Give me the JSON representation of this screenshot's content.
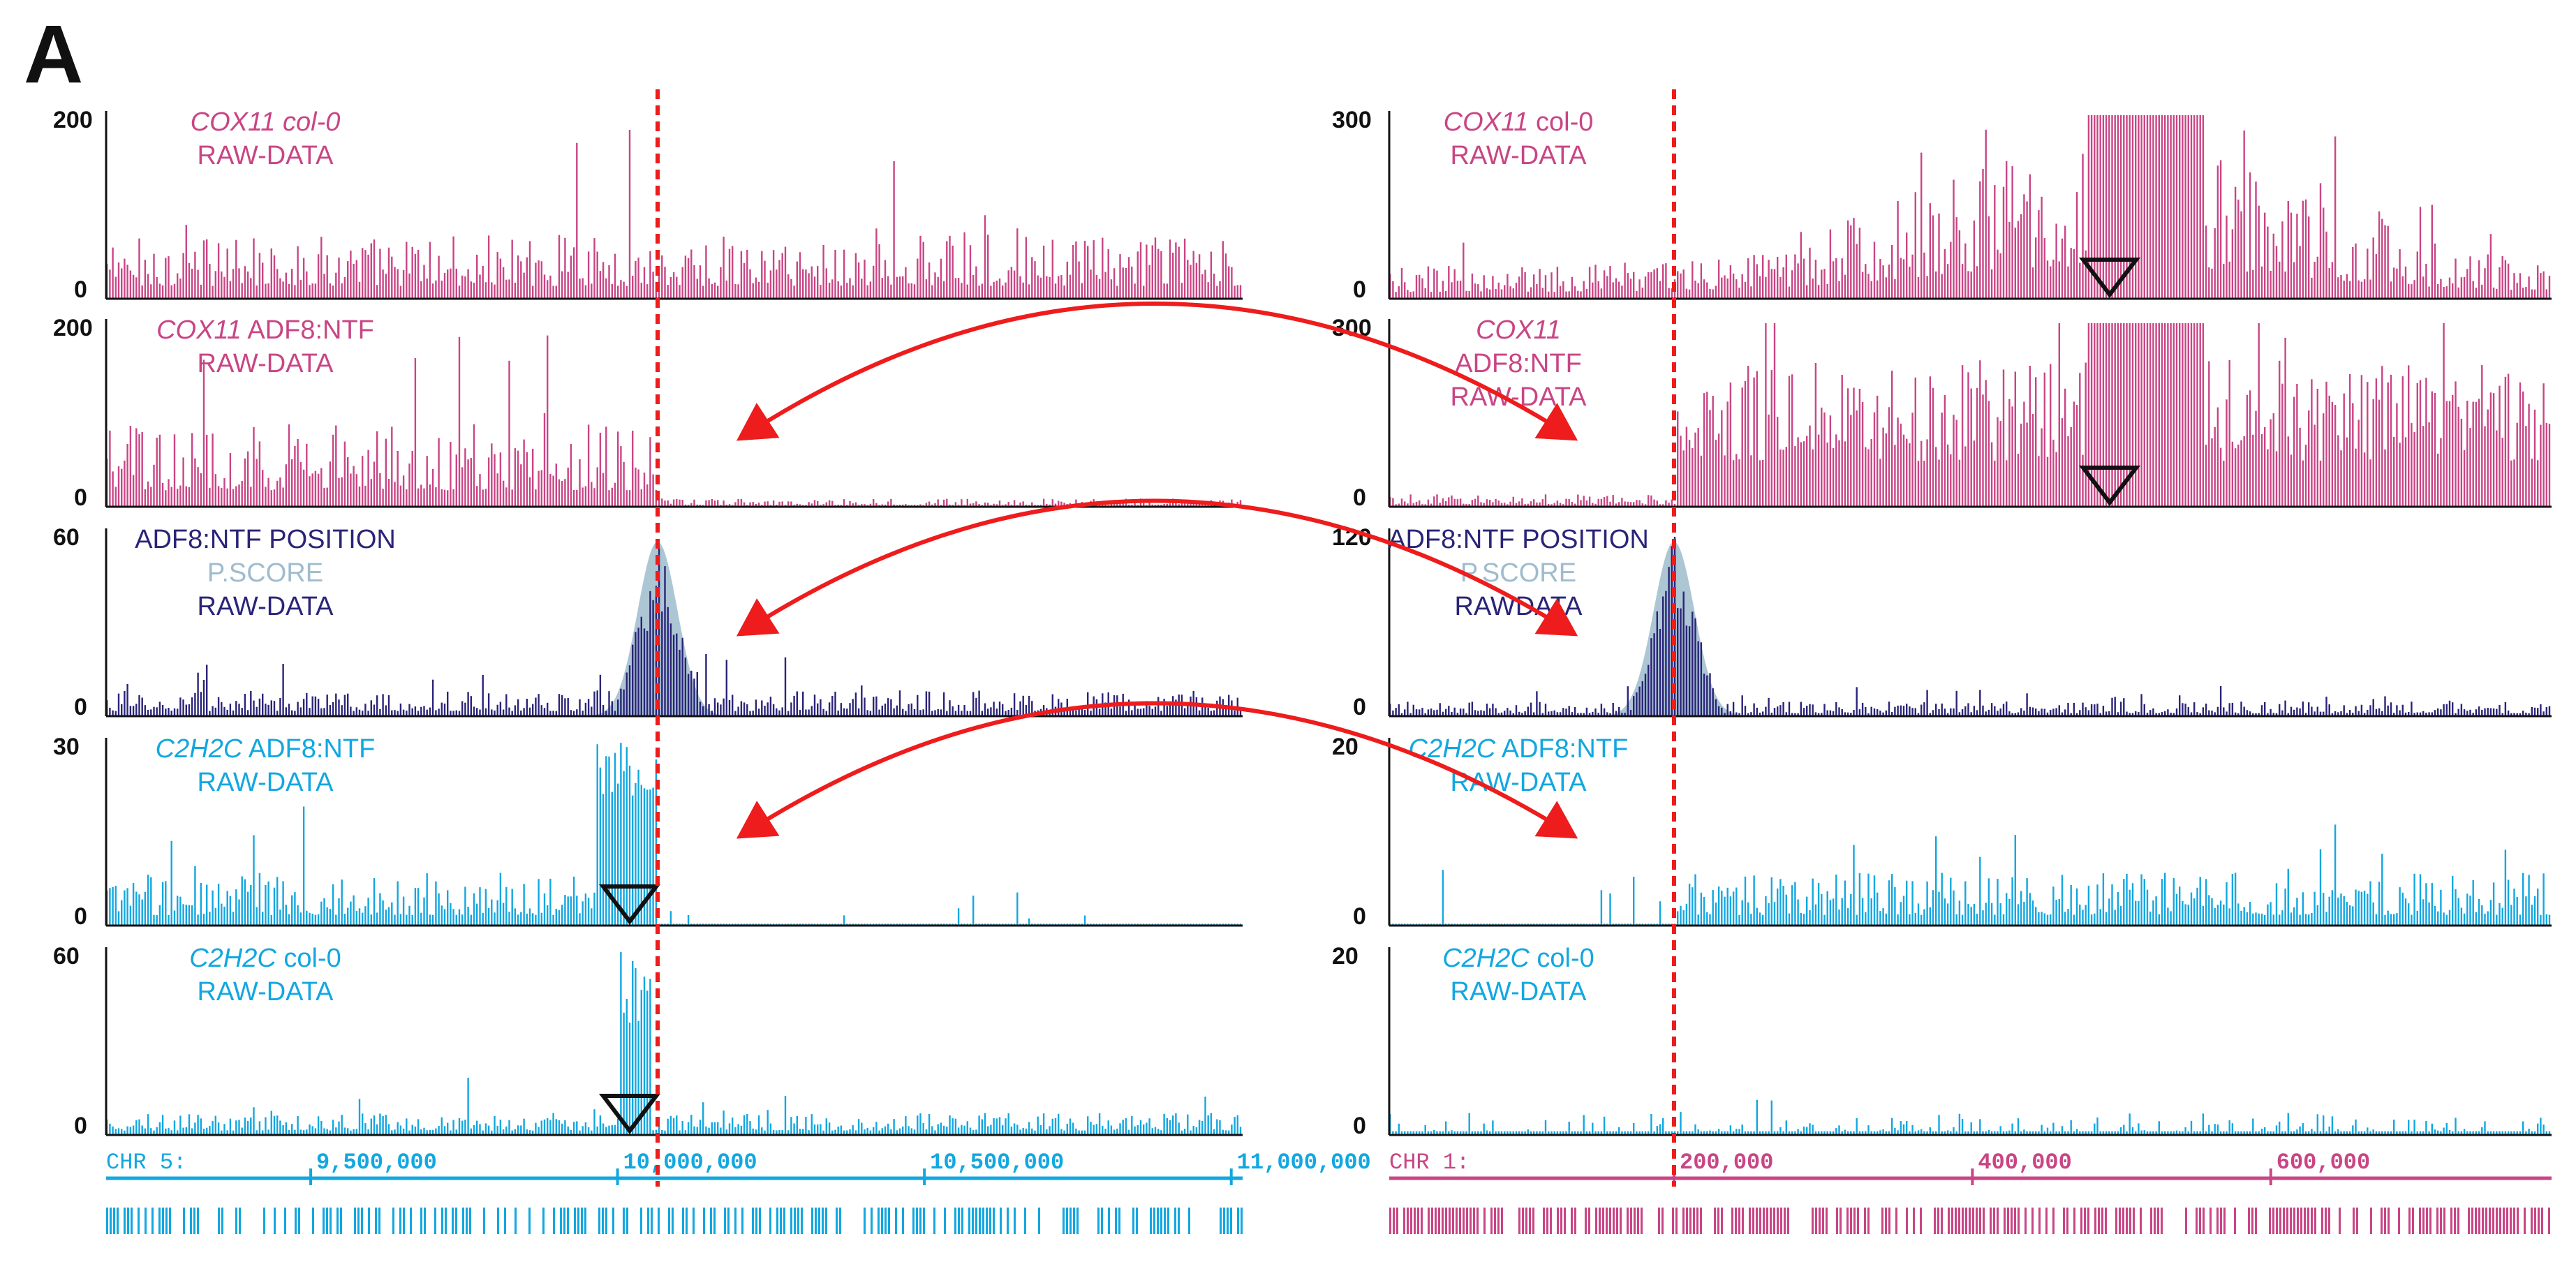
{
  "figure": {
    "panel_label": "A",
    "colors": {
      "pink": "#c94585",
      "navy": "#2a2478",
      "pscore": "#9fbccd",
      "cyan": "#12a7e0",
      "red": "#ee1c1c",
      "axis": "#111111"
    }
  },
  "chart_data": [
    {
      "type": "bar",
      "side": "left",
      "title": "COX11 col-0 RAW-DATA",
      "label_lines": [
        [
          {
            "text": "COX11 col-0",
            "italic": true
          }
        ],
        [
          {
            "text": "RAW-DATA",
            "italic": false
          }
        ]
      ],
      "color": "pink",
      "ylim": [
        0,
        200
      ],
      "yticks": [
        "200",
        "0"
      ],
      "profile": "noise",
      "level": 0.35,
      "triangle": false
    },
    {
      "type": "bar",
      "side": "left",
      "title": "COX11 ADF8:NTF RAW-DATA",
      "label_lines": [
        [
          {
            "text": "COX11",
            "italic": true
          },
          {
            "text": " ADF8:NTF",
            "italic": false
          }
        ],
        [
          {
            "text": "RAW-DATA",
            "italic": false
          }
        ]
      ],
      "color": "pink",
      "ylim": [
        0,
        200
      ],
      "yticks": [
        "200",
        "0"
      ],
      "profile": "left-high",
      "level": 0.3,
      "triangle": false
    },
    {
      "type": "bar",
      "side": "left",
      "title": "ADF8:NTF POSITION P.SCORE RAW-DATA",
      "label_lines": [
        [
          {
            "text": "ADF8:NTF POSITION",
            "italic": false
          }
        ],
        [
          {
            "text": "P.SCORE",
            "italic": false,
            "color": "pscore"
          }
        ],
        [
          {
            "text": "RAW-DATA",
            "italic": false
          }
        ]
      ],
      "color": "navy",
      "ylim": [
        0,
        60
      ],
      "yticks": [
        "60",
        "0"
      ],
      "profile": "peak",
      "level": 0.14,
      "pscore": true,
      "triangle": false
    },
    {
      "type": "bar",
      "side": "left",
      "title": "C2H2C ADF8:NTF RAW-DATA",
      "label_lines": [
        [
          {
            "text": "C2H2C",
            "italic": true
          },
          {
            "text": " ADF8:NTF",
            "italic": false
          }
        ],
        [
          {
            "text": "RAW-DATA",
            "italic": false
          }
        ]
      ],
      "color": "cyan",
      "ylim": [
        0,
        30
      ],
      "yticks": [
        "30",
        "0"
      ],
      "profile": "left-peak",
      "level": 0.16,
      "triangle": true
    },
    {
      "type": "bar",
      "side": "left",
      "title": "C2H2C col-0 RAW-DATA",
      "label_lines": [
        [
          {
            "text": "C2H2C",
            "italic": true
          },
          {
            "text": " col-0",
            "italic": false
          }
        ],
        [
          {
            "text": "RAW-DATA",
            "italic": false
          }
        ]
      ],
      "color": "cyan",
      "ylim": [
        0,
        60
      ],
      "yticks": [
        "60",
        "0"
      ],
      "profile": "narrow-peak",
      "level": 0.12,
      "triangle": true
    },
    {
      "type": "bar",
      "side": "right",
      "title": "COX11 col-0 RAW-DATA",
      "label_lines": [
        [
          {
            "text": "COX11",
            "italic": true
          },
          {
            "text": " col-0",
            "italic": false
          }
        ],
        [
          {
            "text": "RAW-DATA",
            "italic": false
          }
        ]
      ],
      "color": "pink",
      "ylim": [
        0,
        300
      ],
      "yticks": [
        "300",
        "0"
      ],
      "profile": "hotspot",
      "level": 0.18,
      "triangle": true
    },
    {
      "type": "bar",
      "side": "right",
      "title": "COX11 ADF8:NTF RAW-DATA",
      "label_lines": [
        [
          {
            "text": "COX11",
            "italic": true
          }
        ],
        [
          {
            "text": "ADF8:NTF",
            "italic": false
          }
        ],
        [
          {
            "text": "RAW-DATA",
            "italic": false
          }
        ]
      ],
      "color": "pink",
      "ylim": [
        0,
        300
      ],
      "yticks": [
        "300",
        "0"
      ],
      "profile": "right-high",
      "level": 0.45,
      "triangle": true
    },
    {
      "type": "bar",
      "side": "right",
      "title": "ADF8:NTF POSITION P.SCORE RAWDATA",
      "label_lines": [
        [
          {
            "text": "ADF8:NTF POSITION",
            "italic": false
          }
        ],
        [
          {
            "text": "P.SCORE",
            "italic": false,
            "color": "pscore"
          }
        ],
        [
          {
            "text": "RAWDATA",
            "italic": false
          }
        ]
      ],
      "color": "navy",
      "ylim": [
        0,
        120
      ],
      "yticks": [
        "120",
        "0"
      ],
      "profile": "peak",
      "level": 0.08,
      "pscore": true,
      "triangle": false
    },
    {
      "type": "bar",
      "side": "right",
      "title": "C2H2C ADF8:NTF RAW-DATA",
      "label_lines": [
        [
          {
            "text": "C2H2C",
            "italic": true
          },
          {
            "text": " ADF8:NTF",
            "italic": false
          }
        ],
        [
          {
            "text": "RAW-DATA",
            "italic": false
          }
        ]
      ],
      "color": "cyan",
      "ylim": [
        0,
        20
      ],
      "yticks": [
        "20",
        "0"
      ],
      "profile": "right-start",
      "level": 0.18,
      "triangle": false
    },
    {
      "type": "bar",
      "side": "right",
      "title": "C2H2C col-0 RAW-DATA",
      "label_lines": [
        [
          {
            "text": "C2H2C",
            "italic": true
          },
          {
            "text": " col-0",
            "italic": false
          }
        ],
        [
          {
            "text": "RAW-DATA",
            "italic": false
          }
        ]
      ],
      "color": "cyan",
      "ylim": [
        0,
        20
      ],
      "yticks": [
        "20",
        "0"
      ],
      "profile": "sparse",
      "level": 0.12,
      "triangle": false
    }
  ],
  "axes": {
    "left": {
      "chrom": "CHR 5:",
      "color": "cyan",
      "ticks": [
        "9,500,000",
        "10,000,000",
        "10,500,000",
        "11,000,000"
      ]
    },
    "right": {
      "chrom": "CHR 1:",
      "color": "pink",
      "ticks": [
        "200,000",
        "400,000",
        "600,000"
      ]
    }
  }
}
